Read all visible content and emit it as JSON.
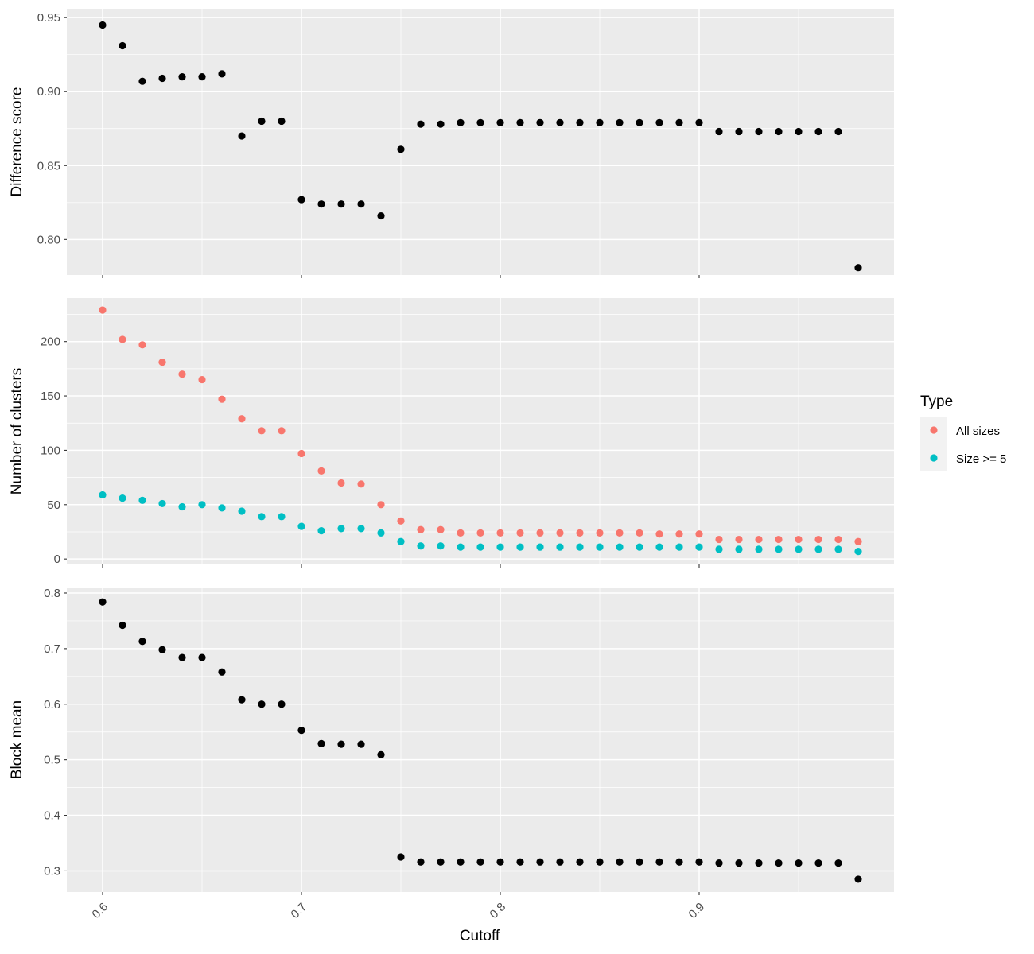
{
  "chart_data": {
    "type": "scatter",
    "xlabel": "Cutoff",
    "x_ticks": [
      0.6,
      0.7,
      0.8,
      0.9
    ],
    "xlim": [
      0.582,
      0.998
    ],
    "grid": true,
    "colors": {
      "panel_bg": "#ebebeb",
      "grid": "#ffffff",
      "default_point": "#000000",
      "all_sizes": "#f8766d",
      "size_ge5": "#00bfc4"
    },
    "x": [
      0.6,
      0.61,
      0.62,
      0.63,
      0.64,
      0.65,
      0.66,
      0.67,
      0.68,
      0.69,
      0.7,
      0.71,
      0.72,
      0.73,
      0.74,
      0.75,
      0.76,
      0.77,
      0.78,
      0.79,
      0.8,
      0.81,
      0.82,
      0.83,
      0.84,
      0.85,
      0.86,
      0.87,
      0.88,
      0.89,
      0.9,
      0.91,
      0.92,
      0.93,
      0.94,
      0.95,
      0.96,
      0.97,
      0.98
    ],
    "panels": [
      {
        "ylabel": "Difference score",
        "ylim": [
          0.776,
          0.956
        ],
        "y_ticks": [
          0.8,
          0.85,
          0.9,
          0.95
        ],
        "y_tick_labels": [
          "0.80",
          "0.85",
          "0.90",
          "0.95"
        ],
        "series": [
          {
            "color": "#000000",
            "values": [
              0.945,
              0.931,
              0.907,
              0.909,
              0.91,
              0.91,
              0.912,
              0.87,
              0.88,
              0.88,
              0.827,
              0.824,
              0.824,
              0.824,
              0.816,
              0.861,
              0.878,
              0.878,
              0.879,
              0.879,
              0.879,
              0.879,
              0.879,
              0.879,
              0.879,
              0.879,
              0.879,
              0.879,
              0.879,
              0.879,
              0.879,
              0.873,
              0.873,
              0.873,
              0.873,
              0.873,
              0.873,
              0.873,
              0.781
            ]
          }
        ]
      },
      {
        "ylabel": "Number of clusters",
        "ylim": [
          -5,
          240
        ],
        "y_ticks": [
          0,
          50,
          100,
          150,
          200
        ],
        "y_tick_labels": [
          "0",
          "50",
          "100",
          "150",
          "200"
        ],
        "series": [
          {
            "name": "All sizes",
            "color": "#f8766d",
            "values": [
              229,
              202,
              197,
              181,
              170,
              165,
              147,
              129,
              118,
              118,
              97,
              81,
              70,
              69,
              50,
              35,
              27,
              27,
              24,
              24,
              24,
              24,
              24,
              24,
              24,
              24,
              24,
              24,
              23,
              23,
              23,
              18,
              18,
              18,
              18,
              18,
              18,
              18,
              16
            ]
          },
          {
            "name": "Size >= 5",
            "color": "#00bfc4",
            "values": [
              59,
              56,
              54,
              51,
              48,
              50,
              47,
              44,
              39,
              39,
              30,
              26,
              28,
              28,
              24,
              16,
              12,
              12,
              11,
              11,
              11,
              11,
              11,
              11,
              11,
              11,
              11,
              11,
              11,
              11,
              11,
              9,
              9,
              9,
              9,
              9,
              9,
              9,
              7
            ]
          }
        ]
      },
      {
        "ylabel": "Block mean",
        "ylim": [
          0.262,
          0.81
        ],
        "y_ticks": [
          0.3,
          0.4,
          0.5,
          0.6,
          0.7,
          0.8
        ],
        "y_tick_labels": [
          "0.3",
          "0.4",
          "0.5",
          "0.6",
          "0.7",
          "0.8"
        ],
        "series": [
          {
            "color": "#000000",
            "values": [
              0.784,
              0.742,
              0.713,
              0.698,
              0.684,
              0.684,
              0.658,
              0.608,
              0.6,
              0.6,
              0.553,
              0.529,
              0.528,
              0.528,
              0.509,
              0.325,
              0.316,
              0.316,
              0.316,
              0.316,
              0.316,
              0.316,
              0.316,
              0.316,
              0.316,
              0.316,
              0.316,
              0.316,
              0.316,
              0.316,
              0.316,
              0.314,
              0.314,
              0.314,
              0.314,
              0.314,
              0.314,
              0.314,
              0.285
            ]
          }
        ]
      }
    ],
    "legend": {
      "title": "Type",
      "position": "right",
      "entries": [
        {
          "label": "All sizes",
          "color": "#f8766d"
        },
        {
          "label": "Size >= 5",
          "color": "#00bfc4"
        }
      ]
    }
  }
}
